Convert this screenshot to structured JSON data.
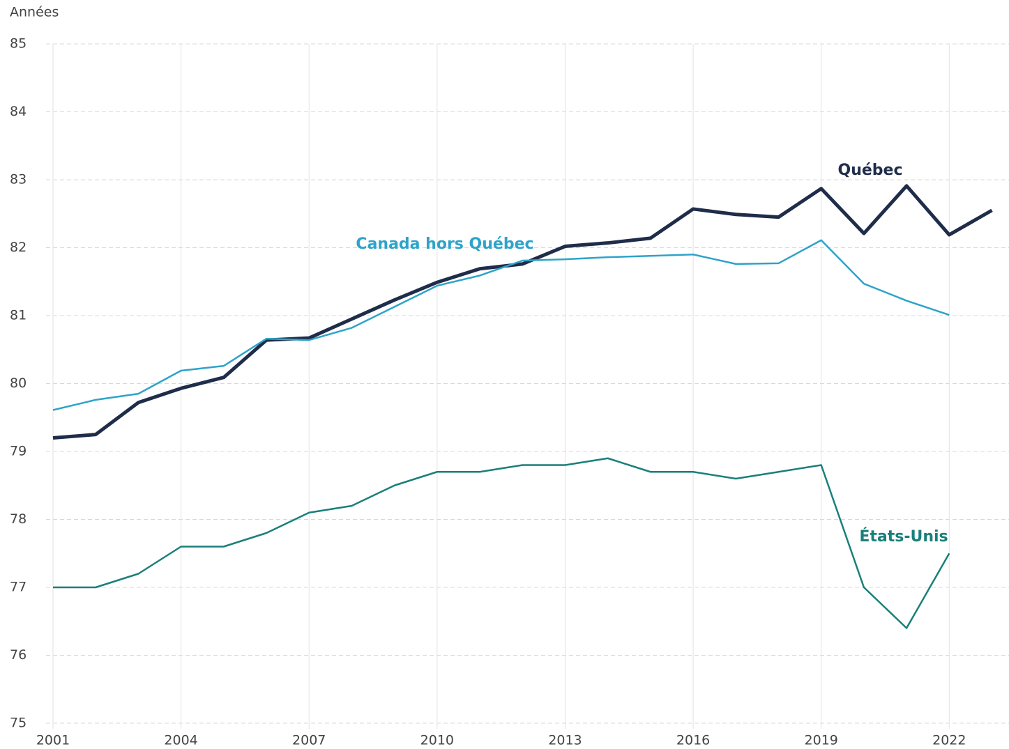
{
  "chart_data": {
    "type": "line",
    "y_label": "Années",
    "x": [
      2001,
      2002,
      2003,
      2004,
      2005,
      2006,
      2007,
      2008,
      2009,
      2010,
      2011,
      2012,
      2013,
      2014,
      2015,
      2016,
      2017,
      2018,
      2019,
      2020,
      2021,
      2022,
      2023
    ],
    "series": [
      {
        "name": "Québec",
        "color": "#1f2d4a",
        "width": 5,
        "values": [
          79.2,
          79.25,
          79.72,
          79.93,
          80.09,
          80.64,
          80.67,
          80.95,
          81.23,
          81.49,
          81.69,
          81.76,
          82.02,
          82.07,
          82.14,
          82.57,
          82.49,
          82.45,
          82.87,
          82.21,
          82.91,
          82.19,
          82.55
        ]
      },
      {
        "name": "Canada hors Québec",
        "color": "#2ea3c9",
        "width": 2.5,
        "values": [
          79.61,
          79.76,
          79.85,
          80.19,
          80.26,
          80.66,
          80.64,
          80.82,
          81.13,
          81.44,
          81.59,
          81.81,
          81.83,
          81.86,
          81.88,
          81.9,
          81.76,
          81.77,
          82.11,
          81.47,
          81.22,
          81.01,
          null
        ]
      },
      {
        "name": "États-Unis",
        "color": "#1a7f7a",
        "width": 2.5,
        "values": [
          77,
          77,
          77.2,
          77.6,
          77.6,
          77.8,
          78.1,
          78.2,
          78.5,
          78.7,
          78.7,
          78.8,
          78.8,
          78.9,
          78.7,
          78.7,
          78.6,
          78.7,
          78.8,
          77,
          76.4,
          77.5,
          null
        ]
      }
    ],
    "xlim": [
      2001,
      2023.4
    ],
    "xticks": [
      2001,
      2004,
      2007,
      2010,
      2013,
      2016,
      2019,
      2022
    ],
    "ylim": [
      75,
      85
    ],
    "yticks": [
      75,
      76,
      77,
      78,
      79,
      80,
      81,
      82,
      83,
      84,
      85
    ],
    "grid": true
  }
}
